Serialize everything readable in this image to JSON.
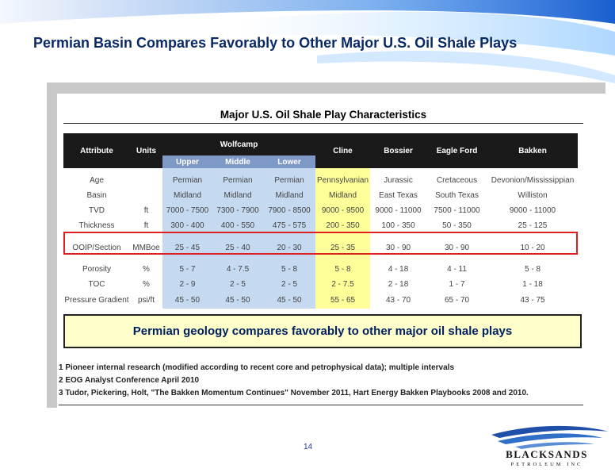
{
  "slide": {
    "title": "Permian Basin Compares Favorably to Other Major U.S. Oil Shale Plays",
    "page_number": "14"
  },
  "table": {
    "title": "Major U.S. Oil Shale Play Characteristics",
    "headers": {
      "attribute": "Attribute",
      "units": "Units",
      "wolfcamp": "Wolfcamp",
      "wolfcamp_sub": [
        "Upper",
        "Middle",
        "Lower"
      ],
      "cline": "Cline",
      "bossier": "Bossier",
      "eagle_ford": "Eagle Ford",
      "bakken": "Bakken"
    },
    "rows": [
      {
        "attribute": "Age",
        "units": "",
        "cells": [
          "Permian",
          "Permian",
          "Permian",
          "Pennsylvanian",
          "Jurassic",
          "Cretaceous",
          "Devonion/Mississippian"
        ]
      },
      {
        "attribute": "Basin",
        "units": "",
        "cells": [
          "Midland",
          "Midland",
          "Midland",
          "Midland",
          "East Texas",
          "South Texas",
          "Williston"
        ]
      },
      {
        "attribute": "TVD",
        "units": "ft",
        "cells": [
          "7000 - 7500",
          "7300 - 7900",
          "7900 - 8500",
          "9000 - 9500",
          "9000 - 11000",
          "7500 - 11000",
          "9000 - 11000"
        ]
      },
      {
        "attribute": "Thickness",
        "units": "ft",
        "cells": [
          "300 - 400",
          "400 - 550",
          "475 - 575",
          "200 - 350",
          "100 - 350",
          "50 - 350",
          "25 - 125"
        ]
      },
      {
        "attribute": "OOIP/Section",
        "units": "MMBoe",
        "cells": [
          "25 - 45",
          "25 - 40",
          "20 - 30",
          "25 - 35",
          "30 - 90",
          "30 - 90",
          "10 - 20"
        ]
      },
      {
        "attribute": "Porosity",
        "units": "%",
        "cells": [
          "5 - 7",
          "4 - 7.5",
          "5 - 8",
          "5 - 8",
          "4 - 18",
          "4 - 11",
          "5 - 8"
        ]
      },
      {
        "attribute": "TOC",
        "units": "%",
        "cells": [
          "2 - 9",
          "2 - 5",
          "2 - 5",
          "2 - 7.5",
          "2 - 18",
          "1 - 7",
          "1 - 18"
        ]
      },
      {
        "attribute": "Pressure Gradient",
        "units": "psi/ft",
        "cells": [
          "45 - 50",
          "45 - 50",
          "45 - 50",
          "55 - 65",
          "43 - 70",
          "65 - 70",
          "43 - 75"
        ]
      }
    ]
  },
  "callout": "Permian geology compares favorably to other major oil shale plays",
  "footnotes": [
    "1 Pioneer internal research (modified according to recent core and petrophysical data); multiple intervals",
    "2 EOG Analyst Conference April 2010",
    "3 Tudor, Pickering, Holt, \"The Bakken Momentum Continues\" November 2011, Hart Energy Bakken Playbooks 2008 and 2010."
  ],
  "logo": {
    "name": "BLACKSANDS",
    "sub": "PETROLEUM INC"
  },
  "colors": {
    "title": "#0a2a66",
    "wolfcamp_highlight": "#c5d9f1",
    "cline_highlight": "#ffff99",
    "highlight_box": "#e02020",
    "callout_bg": "#ffffcc"
  }
}
